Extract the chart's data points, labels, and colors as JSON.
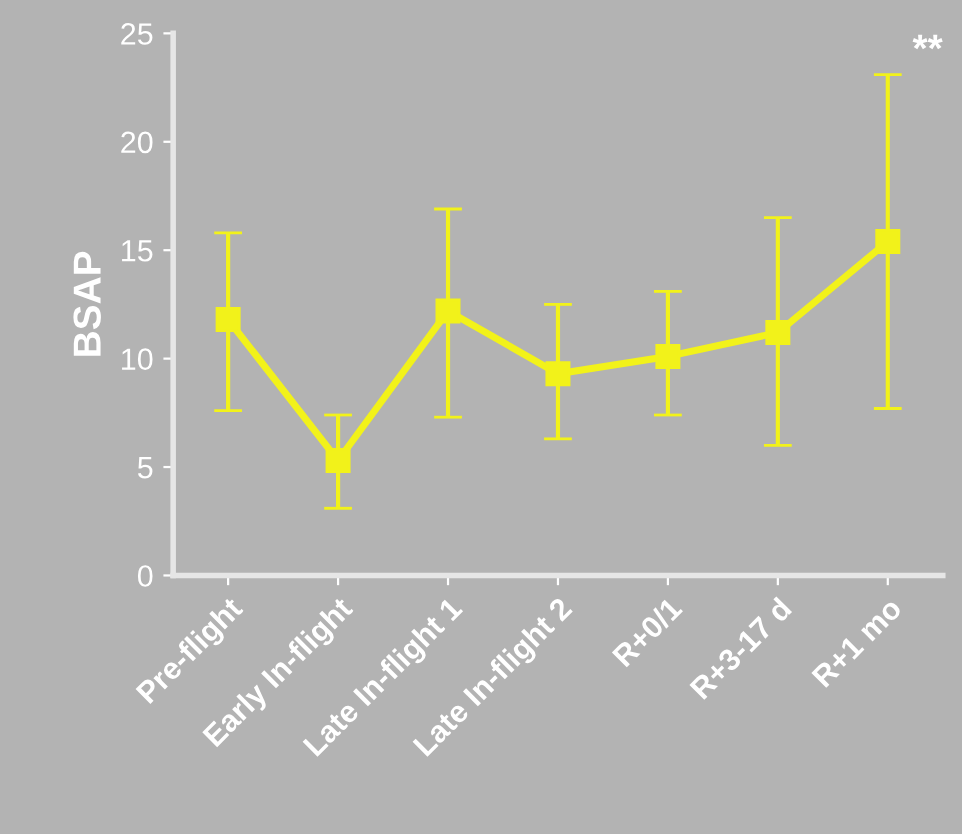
{
  "chart_data": {
    "type": "line",
    "ylabel": "BSAP",
    "categories": [
      "Pre-flight",
      "Early In-flight",
      "Late In-flight 1",
      "Late In-flight 2",
      "R+0/1",
      "R+3-17 d",
      "R+1 mo"
    ],
    "series": [
      {
        "color": "#f2f21a",
        "values": [
          11.8,
          5.3,
          12.2,
          9.3,
          10.1,
          11.2,
          15.4
        ],
        "errors": [
          [
            7.6,
            15.8
          ],
          [
            3.1,
            7.4
          ],
          [
            7.3,
            16.9
          ],
          [
            6.3,
            12.5
          ],
          [
            7.4,
            13.1
          ],
          [
            6.0,
            16.5
          ],
          [
            7.7,
            23.1
          ]
        ]
      }
    ],
    "ylim": [
      0,
      25
    ],
    "yticks": [
      0,
      5,
      10,
      15,
      20,
      25
    ],
    "marker": "square",
    "line_style": "solid",
    "annotations": [
      "**"
    ]
  }
}
